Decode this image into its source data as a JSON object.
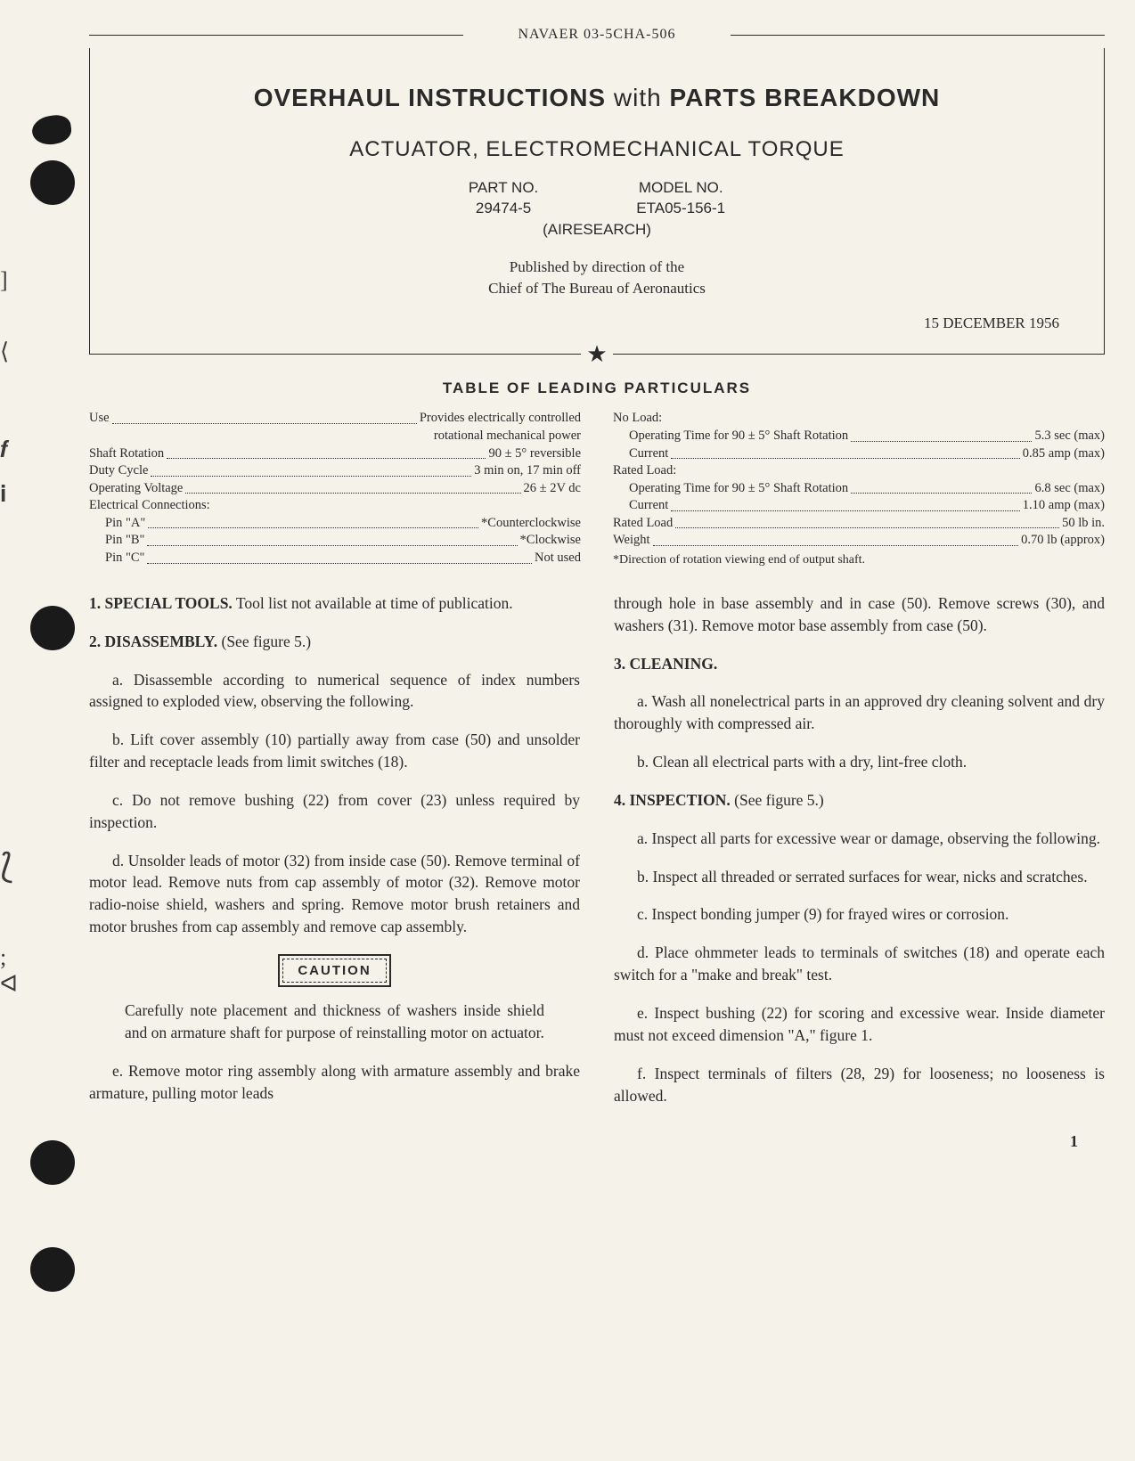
{
  "doc_number": "NAVAER 03-5CHA-506",
  "title_box": {
    "main_a": "OVERHAUL INSTRUCTIONS",
    "main_with": "with",
    "main_b": "PARTS BREAKDOWN",
    "subtitle": "ACTUATOR, ELECTROMECHANICAL TORQUE",
    "part_label": "PART NO.",
    "part_value": "29474-5",
    "model_label": "MODEL NO.",
    "model_value": "ETA05-156-1",
    "manufacturer": "(AIRESEARCH)",
    "published_1": "Published by direction of the",
    "published_2": "Chief of The Bureau of Aeronautics",
    "date": "15 DECEMBER 1956"
  },
  "particulars": {
    "title": "TABLE OF LEADING PARTICULARS",
    "left": [
      {
        "label": "Use",
        "value": "Provides electrically controlled",
        "sub": "rotational mechanical power"
      },
      {
        "label": "Shaft Rotation",
        "value": "90 ± 5° reversible"
      },
      {
        "label": "Duty Cycle",
        "value": "3 min on, 17 min off"
      },
      {
        "label": "Operating Voltage",
        "value": "26 ± 2V dc"
      },
      {
        "label": "Electrical Connections:",
        "value": ""
      },
      {
        "label": "Pin \"A\"",
        "value": "*Counterclockwise",
        "indent": true
      },
      {
        "label": "Pin \"B\"",
        "value": "*Clockwise",
        "indent": true
      },
      {
        "label": "Pin \"C\"",
        "value": "Not used",
        "indent": true
      }
    ],
    "right": [
      {
        "label": "No Load:",
        "value": ""
      },
      {
        "label": "Operating Time for 90 ± 5° Shaft Rotation",
        "value": "5.3 sec (max)",
        "indent": true
      },
      {
        "label": "Current",
        "value": "0.85 amp (max)",
        "indent": true
      },
      {
        "label": "Rated Load:",
        "value": ""
      },
      {
        "label": "Operating Time for 90 ± 5° Shaft Rotation",
        "value": "6.8 sec (max)",
        "indent": true
      },
      {
        "label": "Current",
        "value": "1.10 amp (max)",
        "indent": true
      },
      {
        "label": "Rated Load",
        "value": "50 lb in."
      },
      {
        "label": "Weight",
        "value": "0.70 lb (approx)"
      }
    ],
    "footnote": "*Direction of rotation viewing end of output shaft."
  },
  "body": {
    "left": {
      "s1_head": "1. SPECIAL TOOLS.",
      "s1_text": " Tool list not available at time of publication.",
      "s2_head": "2. DISASSEMBLY.",
      "s2_ref": " (See figure 5.)",
      "s2a": "a. Disassemble according to numerical sequence of index numbers assigned to exploded view, observing the following.",
      "s2b": "b. Lift cover assembly (10) partially away from case (50) and unsolder filter and receptacle leads from limit switches (18).",
      "s2c": "c. Do not remove bushing (22) from cover (23) unless required by inspection.",
      "s2d": "d. Unsolder leads of motor (32) from inside case (50). Remove terminal of motor lead. Remove nuts from cap assembly of motor (32). Remove motor radio-noise shield, washers and spring. Remove motor brush retainers and motor brushes from cap assembly and remove cap assembly.",
      "caution_label": "CAUTION",
      "caution_text": "Carefully note placement and thickness of washers inside shield and on armature shaft for purpose of reinstalling motor on actuator.",
      "s2e": "e. Remove motor ring assembly along with armature assembly and brake armature, pulling motor leads"
    },
    "right": {
      "cont": "through hole in base assembly and in case (50). Remove screws (30), and washers (31). Remove motor base assembly from case (50).",
      "s3_head": "3. CLEANING.",
      "s3a": "a. Wash all nonelectrical parts in an approved dry cleaning solvent and dry thoroughly with compressed air.",
      "s3b": "b. Clean all electrical parts with a dry, lint-free cloth.",
      "s4_head": "4. INSPECTION.",
      "s4_ref": " (See figure 5.)",
      "s4a": "a. Inspect all parts for excessive wear or damage, observing the following.",
      "s4b": "b. Inspect all threaded or serrated surfaces for wear, nicks and scratches.",
      "s4c": "c. Inspect bonding jumper (9) for frayed wires or corrosion.",
      "s4d": "d. Place ohmmeter leads to terminals of switches (18) and operate each switch for a \"make and break\" test.",
      "s4e": "e. Inspect bushing (22) for scoring and excessive wear. Inside diameter must not exceed dimension \"A,\" figure 1.",
      "s4f": "f. Inspect terminals of filters (28, 29) for looseness; no looseness is allowed."
    }
  },
  "page_number": "1"
}
